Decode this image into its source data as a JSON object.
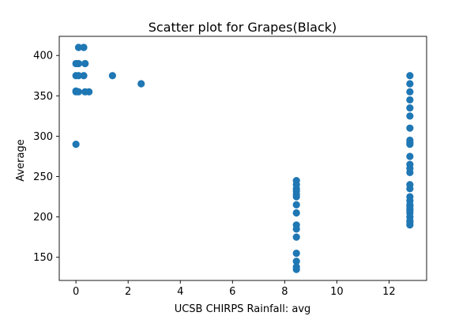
{
  "chart_data": {
    "type": "scatter",
    "title": "Scatter plot for Grapes(Black)",
    "xlabel": "UCSB CHIRPS Rainfall: avg",
    "ylabel": "Average",
    "xlim": [
      -0.64,
      13.44
    ],
    "ylim": [
      121.3,
      423.7
    ],
    "x_ticks": [
      0,
      2,
      4,
      6,
      8,
      10,
      12
    ],
    "y_ticks": [
      150,
      200,
      250,
      300,
      350,
      400
    ],
    "grid": false,
    "marker_color": "#1f77b4",
    "series": [
      {
        "points": [
          [
            0.0,
            290
          ],
          [
            0.0,
            355
          ],
          [
            0.0,
            356
          ],
          [
            0.0,
            375
          ],
          [
            0.0,
            390
          ],
          [
            0.1,
            410
          ],
          [
            0.1,
            390
          ],
          [
            0.1,
            375
          ],
          [
            0.1,
            355
          ],
          [
            0.3,
            410
          ],
          [
            0.3,
            375
          ],
          [
            0.35,
            390
          ],
          [
            0.35,
            355
          ],
          [
            0.5,
            355
          ],
          [
            1.4,
            375
          ],
          [
            2.5,
            365
          ],
          [
            8.45,
            135
          ],
          [
            8.45,
            138
          ],
          [
            8.45,
            145
          ],
          [
            8.45,
            155
          ],
          [
            8.45,
            175
          ],
          [
            8.45,
            185
          ],
          [
            8.45,
            190
          ],
          [
            8.45,
            205
          ],
          [
            8.45,
            215
          ],
          [
            8.45,
            225
          ],
          [
            8.45,
            228
          ],
          [
            8.45,
            232
          ],
          [
            8.45,
            235
          ],
          [
            8.45,
            240
          ],
          [
            8.45,
            245
          ],
          [
            12.8,
            190
          ],
          [
            12.8,
            193
          ],
          [
            12.8,
            195
          ],
          [
            12.8,
            200
          ],
          [
            12.8,
            205
          ],
          [
            12.8,
            208
          ],
          [
            12.8,
            210
          ],
          [
            12.8,
            213
          ],
          [
            12.8,
            215
          ],
          [
            12.8,
            220
          ],
          [
            12.8,
            225
          ],
          [
            12.8,
            235
          ],
          [
            12.8,
            240
          ],
          [
            12.8,
            255
          ],
          [
            12.8,
            260
          ],
          [
            12.8,
            265
          ],
          [
            12.8,
            275
          ],
          [
            12.8,
            290
          ],
          [
            12.8,
            292
          ],
          [
            12.8,
            295
          ],
          [
            12.8,
            310
          ],
          [
            12.8,
            325
          ],
          [
            12.8,
            335
          ],
          [
            12.8,
            345
          ],
          [
            12.8,
            355
          ],
          [
            12.8,
            365
          ],
          [
            12.8,
            375
          ]
        ]
      }
    ]
  }
}
